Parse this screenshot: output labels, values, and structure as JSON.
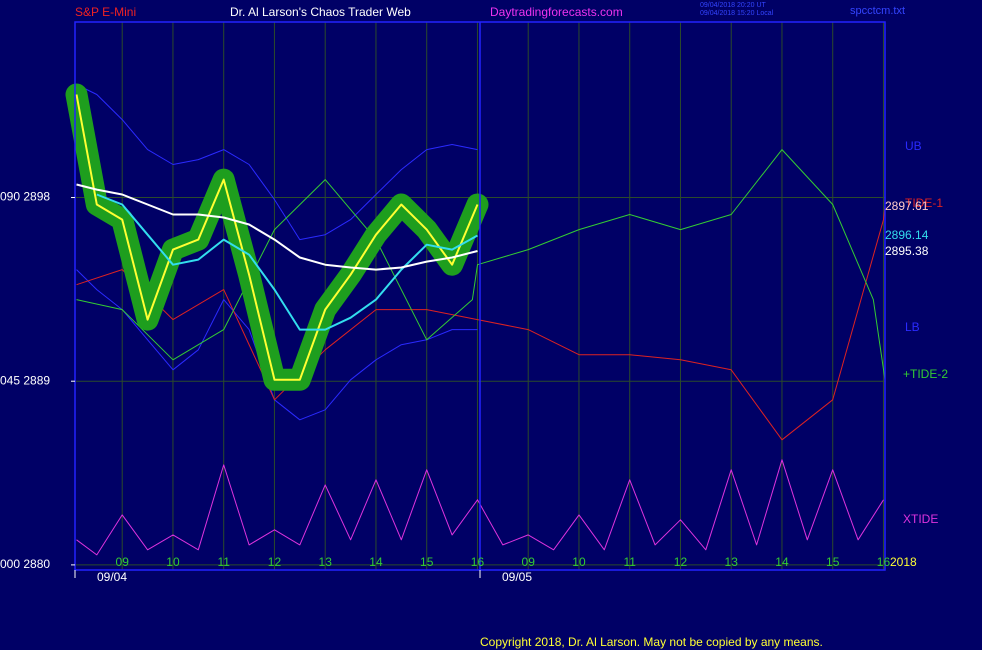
{
  "chart_data": {
    "type": "line",
    "title": "S&P E-Mini",
    "subtitle": "Dr. Al Larson's Chaos Trader Web",
    "website": "Daytradingforecasts.com",
    "timestamps": [
      "09/04/2018 20:20 UT",
      "09/04/2018 15:20 Local"
    ],
    "file": "spcctcm.txt",
    "year": "2018",
    "copyright": "Copyright 2018, Dr. Al Larson. May not be copied by any means.",
    "xlim": [
      -0.93,
      15.03
    ],
    "xticks": [
      {
        "value": 0,
        "label": "09"
      },
      {
        "value": 1,
        "label": "10"
      },
      {
        "value": 2,
        "label": "11"
      },
      {
        "value": 3,
        "label": "12"
      },
      {
        "value": 4,
        "label": "13"
      },
      {
        "value": 5,
        "label": "14"
      },
      {
        "value": 6,
        "label": "15"
      },
      {
        "value": 7,
        "label": "16"
      },
      {
        "value": 8,
        "label": "09"
      },
      {
        "value": 9,
        "label": "10"
      },
      {
        "value": 10,
        "label": "11"
      },
      {
        "value": 11,
        "label": "12"
      },
      {
        "value": 12,
        "label": "13"
      },
      {
        "value": 13,
        "label": "14"
      },
      {
        "value": 14,
        "label": "15"
      },
      {
        "value": 15,
        "label": "16"
      }
    ],
    "date_ticks": [
      {
        "value": -0.93,
        "label": "09/04"
      },
      {
        "value": 7.05,
        "label": "09/05"
      }
    ],
    "ylim": [
      2879.75,
      2906.6
    ],
    "yticks": [
      {
        "value": 2880,
        "label": "000 2880"
      },
      {
        "value": 2889,
        "label": "045 2889"
      },
      {
        "value": 2898,
        "label": "090 2898"
      }
    ],
    "grid": true,
    "series": [
      {
        "color": "#ffff33",
        "halo_color": "#1e9e1e",
        "x": [
          -0.9,
          -0.5,
          0,
          0.5,
          1,
          1.5,
          2,
          2.5,
          3,
          3.5,
          4,
          4.5,
          5,
          5.5,
          6,
          6.5,
          7
        ],
        "values": [
          2903.05,
          2897.66,
          2896.92,
          2892.02,
          2895.45,
          2895.94,
          2898.88,
          2894.22,
          2889.07,
          2889.07,
          2892.51,
          2894.22,
          2896.18,
          2897.66,
          2896.43,
          2894.71,
          2897.66
        ]
      },
      {
        "color": "#ffffff",
        "x": [
          -0.9,
          -0.5,
          0,
          0.5,
          1,
          1.5,
          2,
          2.5,
          3,
          3.5,
          4,
          4.5,
          5,
          5.5,
          6,
          6.5,
          7
        ],
        "values": [
          2898.64,
          2898.39,
          2898.15,
          2897.66,
          2897.17,
          2897.17,
          2897.02,
          2896.68,
          2895.94,
          2895.06,
          2894.71,
          2894.57,
          2894.47,
          2894.57,
          2894.86,
          2895.06,
          2895.38
        ]
      },
      {
        "color": "#33ddee",
        "x": [
          -0.5,
          0,
          0.5,
          1,
          1.5,
          2,
          2.5,
          3,
          3.5,
          4,
          4.5,
          5,
          5.5,
          6,
          6.5,
          7
        ],
        "values": [
          2898.15,
          2897.66,
          2896.18,
          2894.71,
          2894.96,
          2895.94,
          2895.2,
          2893.49,
          2891.53,
          2891.53,
          2892.11,
          2893.0,
          2894.47,
          2895.69,
          2895.45,
          2896.14
        ]
      },
      {
        "name": "UB",
        "color": "#2a2aff",
        "x": [
          -0.9,
          -0.5,
          0,
          0.5,
          1,
          1.5,
          2,
          2.5,
          3,
          3.5,
          4,
          4.5,
          5,
          5.5,
          6,
          6.5,
          7
        ],
        "values": [
          2903.54,
          2903.05,
          2901.82,
          2900.35,
          2899.62,
          2899.86,
          2900.35,
          2899.62,
          2897.9,
          2895.94,
          2896.18,
          2896.92,
          2898.15,
          2899.37,
          2900.35,
          2900.6,
          2900.35
        ]
      },
      {
        "name": "LB",
        "color": "#2a2aff",
        "x": [
          -0.9,
          -0.5,
          0,
          0.5,
          1,
          1.5,
          2,
          2.5,
          3,
          3.5,
          4,
          4.5,
          5,
          5.5,
          6,
          6.5,
          7
        ],
        "values": [
          2894.47,
          2893.49,
          2892.51,
          2891.03,
          2889.56,
          2890.54,
          2893.0,
          2891.53,
          2888.09,
          2887.11,
          2887.6,
          2889.07,
          2890.05,
          2890.79,
          2891.03,
          2891.53,
          2891.53
        ]
      },
      {
        "name": "TIDE-1",
        "color": "#dd2222",
        "x": [
          -0.9,
          0,
          1,
          2,
          3,
          4,
          5,
          6,
          7,
          8,
          9,
          10,
          11,
          12,
          13,
          14,
          15,
          15.03
        ],
        "values": [
          2893.73,
          2894.47,
          2892.02,
          2893.49,
          2888.09,
          2890.54,
          2892.51,
          2892.51,
          2892.02,
          2891.53,
          2890.3,
          2890.3,
          2890.05,
          2889.56,
          2886.13,
          2888.09,
          2896.92,
          2897.61
        ]
      },
      {
        "name": "+TIDE-2",
        "color": "#33cc33",
        "x": [
          -0.9,
          0,
          1,
          2,
          3,
          4,
          5,
          6,
          6.9,
          7,
          8,
          9,
          10,
          11,
          12,
          13,
          14,
          14.8,
          15.03
        ],
        "values": [
          2893.0,
          2892.51,
          2890.05,
          2891.53,
          2896.43,
          2898.88,
          2895.94,
          2891.03,
          2893.0,
          2894.71,
          2895.45,
          2896.43,
          2897.17,
          2896.43,
          2897.17,
          2900.35,
          2897.66,
          2893.0,
          2889.07
        ]
      },
      {
        "name": "XTIDE",
        "color": "#dd33dd",
        "x": [
          -0.9,
          -0.5,
          0,
          0.5,
          1,
          1.5,
          2,
          2.5,
          3,
          3.5,
          4,
          4.5,
          5,
          5.5,
          6,
          6.5,
          7,
          7.5,
          8,
          8.5,
          9,
          9.5,
          10,
          10.5,
          11,
          11.5,
          12,
          12.5,
          13,
          13.5,
          14,
          14.5,
          15
        ],
        "values": [
          2881.23,
          2880.49,
          2882.45,
          2880.74,
          2881.47,
          2880.74,
          2884.9,
          2880.98,
          2881.72,
          2880.98,
          2883.92,
          2881.23,
          2884.17,
          2881.23,
          2884.66,
          2881.47,
          2883.19,
          2880.98,
          2881.47,
          2880.74,
          2882.45,
          2880.74,
          2884.17,
          2880.98,
          2882.21,
          2880.74,
          2884.66,
          2880.98,
          2885.15,
          2881.23,
          2884.66,
          2881.23,
          2883.19
        ]
      }
    ]
  }
}
